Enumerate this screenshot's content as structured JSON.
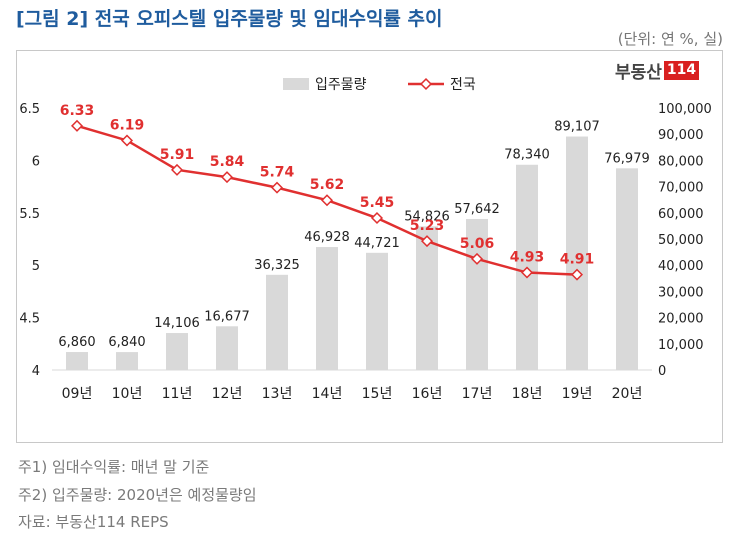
{
  "header": {
    "title": "[그림 2] 전국 오피스텔 입주물량 및 임대수익률 추이",
    "unit": "(단위: 연 %, 실)"
  },
  "brand": {
    "name": "부동산",
    "number": "114"
  },
  "colors": {
    "bar": "#d9d9d9",
    "line": "#e03030",
    "title": "#1f5c9e"
  },
  "chart_data": {
    "type": "bar+line",
    "categories": [
      "09년",
      "10년",
      "11년",
      "12년",
      "13년",
      "14년",
      "15년",
      "16년",
      "17년",
      "18년",
      "19년",
      "20년"
    ],
    "series": [
      {
        "name": "입주물량",
        "type": "bar",
        "axis": "right",
        "values": [
          6860,
          6840,
          14106,
          16677,
          36325,
          46928,
          44721,
          54826,
          57642,
          78340,
          89107,
          76979
        ],
        "labels": [
          "6,860",
          "6,840",
          "14,106",
          "16,677",
          "36,325",
          "46,928",
          "44,721",
          "54,826",
          "57,642",
          "78,340",
          "89,107",
          "76,979"
        ]
      },
      {
        "name": "전국",
        "type": "line",
        "axis": "left",
        "values": [
          6.33,
          6.19,
          5.91,
          5.84,
          5.74,
          5.62,
          5.45,
          5.23,
          5.06,
          4.93,
          4.91,
          null
        ],
        "labels": [
          "6.33",
          "6.19",
          "5.91",
          "5.84",
          "5.74",
          "5.62",
          "5.45",
          "5.23",
          "5.06",
          "4.93",
          "4.91",
          ""
        ]
      }
    ],
    "y_left": {
      "min": 4,
      "max": 6.5,
      "ticks": [
        "4",
        "4.5",
        "5",
        "5.5",
        "6",
        "6.5"
      ]
    },
    "y_right": {
      "min": 0,
      "max": 100000,
      "ticks": [
        "0",
        "10,000",
        "20,000",
        "30,000",
        "40,000",
        "50,000",
        "60,000",
        "70,000",
        "80,000",
        "90,000",
        "100,000"
      ]
    },
    "legend_position": "top-center",
    "grid": false
  },
  "notes": [
    "주1) 임대수익률: 매년 말 기준",
    "주2) 입주물량: 2020년은 예정물량임",
    "자료: 부동산114 REPS"
  ]
}
